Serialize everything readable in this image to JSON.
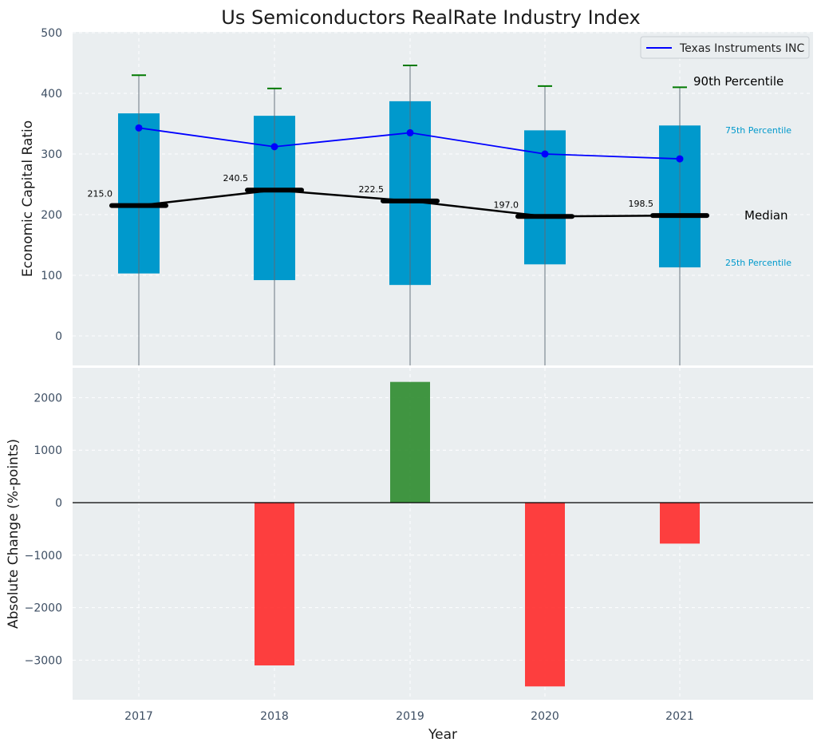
{
  "chart_data": [
    {
      "type": "box",
      "title": "Us Semiconductors RealRate Industry Index",
      "ylabel": "Economic Capital Ratio",
      "xlabel": "",
      "ylim": [
        -50,
        500
      ],
      "yticks": [
        0,
        100,
        200,
        300,
        400,
        500
      ],
      "categories": [
        "2017",
        "2018",
        "2019",
        "2020",
        "2021"
      ],
      "p25": [
        103,
        92,
        84,
        118,
        113
      ],
      "p75": [
        367,
        363,
        387,
        339,
        347
      ],
      "p90": [
        430,
        408,
        446,
        412,
        410
      ],
      "median": [
        215.0,
        240.5,
        222.5,
        197.0,
        198.5
      ],
      "median_labels": [
        "215.0",
        "240.5",
        "222.5",
        "197.0",
        "198.5"
      ],
      "series": [
        {
          "name": "Texas Instruments INC",
          "values": [
            343,
            312,
            335,
            300,
            292
          ]
        }
      ],
      "annotations": {
        "p90": "90th Percentile",
        "p75": "75th Percentile",
        "median": "Median",
        "p25": "25th Percentile"
      },
      "legend": "top-right",
      "grid": true
    },
    {
      "type": "bar",
      "categories": [
        "2017",
        "2018",
        "2019",
        "2020",
        "2021"
      ],
      "values": [
        0,
        -3100,
        2300,
        -3500,
        -780
      ],
      "xlabel": "Year",
      "ylabel": "Absolute Change (%-points)",
      "ylim": [
        -3800,
        2600
      ],
      "yticks": [
        -3000,
        -2000,
        -1000,
        0,
        1000,
        2000
      ],
      "ytick_labels": [
        "−3000",
        "−2000",
        "−1000",
        "0",
        "1000",
        "2000"
      ],
      "grid": true
    }
  ],
  "colors": {
    "box": "#0099cc",
    "median_line": "#000000",
    "whisker_cap": "#007a00",
    "series_line": "#0000ff",
    "positive_bar": "#2e8b2e",
    "negative_bar": "#ff2a2a",
    "panel_bg": "#eaeef0",
    "p75_label": "#0099cc"
  }
}
